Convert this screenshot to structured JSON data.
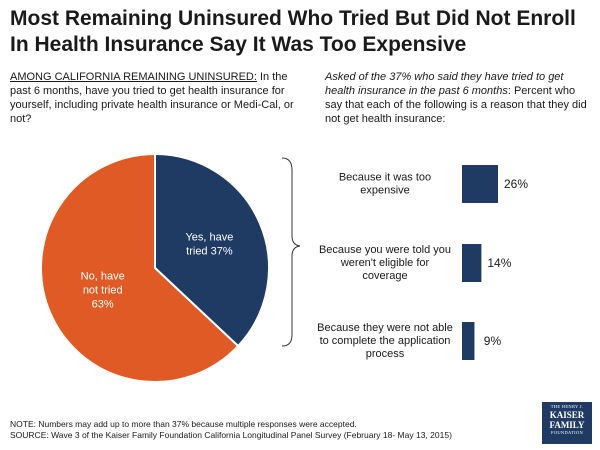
{
  "title": "Most Remaining Uninsured Who Tried But Did Not Enroll In Health Insurance Say It Was Too Expensive",
  "left_question": {
    "lead": "AMONG CALIFORNIA REMAINING UNINSURED:",
    "text": " In the past 6 months, have you tried to get health insurance for yourself, including private health insurance or Medi-Cal, or not?"
  },
  "right_question": {
    "lead": "Asked of the 37% who said they have tried to get health insurance in the past 6 months",
    "text": ": Percent who say that each of the following is a reason that they did not get health insurance:"
  },
  "colors": {
    "yes": "#1f3a63",
    "no": "#e05a25",
    "bar": "#1f3a63"
  },
  "chart_data": [
    {
      "type": "pie",
      "slices": [
        {
          "label_lines": [
            "Yes, have",
            "tried 37%"
          ],
          "value": 37,
          "color": "#1f3a63"
        },
        {
          "label_lines": [
            "No, have",
            "not tried",
            "63%"
          ],
          "value": 63,
          "color": "#e05a25"
        }
      ]
    },
    {
      "type": "bar",
      "orientation": "horizontal",
      "xlim": [
        0,
        26
      ],
      "bars": [
        {
          "label_lines": [
            "Because it was too",
            "expensive"
          ],
          "value": 26,
          "value_label": "26%"
        },
        {
          "label_lines": [
            "Because you were told you",
            "weren't eligible for",
            "coverage"
          ],
          "value": 14,
          "value_label": "14%"
        },
        {
          "label_lines": [
            "Because they were not able",
            "to complete the application",
            "process"
          ],
          "value": 9,
          "value_label": "9%"
        }
      ]
    }
  ],
  "note": "NOTE: Numbers may add up to more than 37% because multiple responses were accepted.",
  "source": "SOURCE: Wave 3 of the Kaiser Family Foundation California Longitudinal Panel Survey (February 18- May 13, 2015)",
  "logo": {
    "line1": "THE HENRY J.",
    "line2a": "KAISER",
    "line2b": "FAMILY",
    "line3": "FOUNDATION"
  }
}
